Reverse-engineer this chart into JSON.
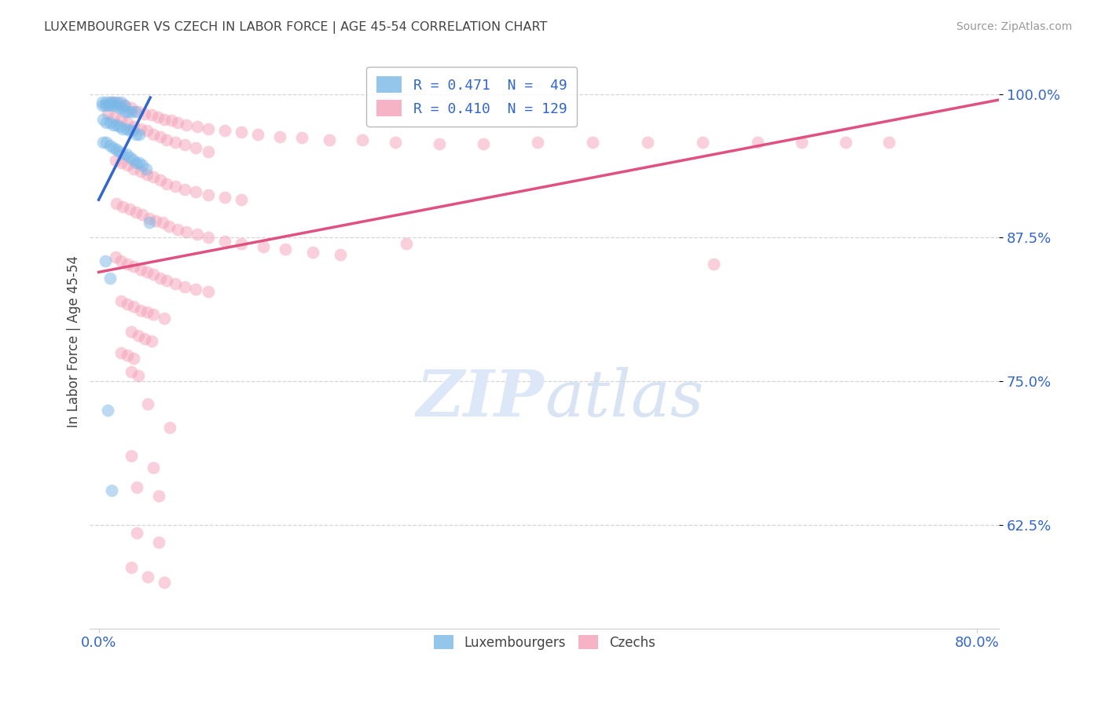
{
  "title": "LUXEMBOURGER VS CZECH IN LABOR FORCE | AGE 45-54 CORRELATION CHART",
  "source": "Source: ZipAtlas.com",
  "ylabel": "In Labor Force | Age 45-54",
  "ytick_labels": [
    "100.0%",
    "87.5%",
    "75.0%",
    "62.5%"
  ],
  "ytick_values": [
    1.0,
    0.875,
    0.75,
    0.625
  ],
  "ymin": 0.535,
  "ymax": 1.035,
  "xmin": -0.008,
  "xmax": 0.82,
  "lux_color": "#7ab8e8",
  "czech_color": "#f4a0b8",
  "lux_line_color": "#3366cc",
  "czech_line_color": "#e05080",
  "marker_size": 130,
  "marker_alpha": 0.5,
  "lux_points": [
    [
      0.003,
      0.993
    ],
    [
      0.007,
      0.993
    ],
    [
      0.01,
      0.993
    ],
    [
      0.013,
      0.993
    ],
    [
      0.016,
      0.993
    ],
    [
      0.02,
      0.993
    ],
    [
      0.023,
      0.99
    ],
    [
      0.003,
      0.99
    ],
    [
      0.006,
      0.99
    ],
    [
      0.009,
      0.99
    ],
    [
      0.012,
      0.99
    ],
    [
      0.015,
      0.99
    ],
    [
      0.018,
      0.988
    ],
    [
      0.021,
      0.988
    ],
    [
      0.024,
      0.985
    ],
    [
      0.027,
      0.985
    ],
    [
      0.03,
      0.985
    ],
    [
      0.033,
      0.985
    ],
    [
      0.004,
      0.978
    ],
    [
      0.007,
      0.975
    ],
    [
      0.01,
      0.975
    ],
    [
      0.013,
      0.973
    ],
    [
      0.016,
      0.973
    ],
    [
      0.019,
      0.972
    ],
    [
      0.022,
      0.97
    ],
    [
      0.025,
      0.97
    ],
    [
      0.028,
      0.968
    ],
    [
      0.031,
      0.968
    ],
    [
      0.034,
      0.965
    ],
    [
      0.037,
      0.965
    ],
    [
      0.004,
      0.958
    ],
    [
      0.007,
      0.958
    ],
    [
      0.01,
      0.955
    ],
    [
      0.013,
      0.953
    ],
    [
      0.016,
      0.952
    ],
    [
      0.019,
      0.95
    ],
    [
      0.022,
      0.948
    ],
    [
      0.025,
      0.948
    ],
    [
      0.028,
      0.945
    ],
    [
      0.031,
      0.943
    ],
    [
      0.034,
      0.94
    ],
    [
      0.037,
      0.94
    ],
    [
      0.04,
      0.938
    ],
    [
      0.043,
      0.935
    ],
    [
      0.046,
      0.888
    ],
    [
      0.006,
      0.855
    ],
    [
      0.01,
      0.84
    ],
    [
      0.008,
      0.725
    ],
    [
      0.012,
      0.655
    ]
  ],
  "czech_points": [
    [
      0.012,
      0.993
    ],
    [
      0.018,
      0.992
    ],
    [
      0.024,
      0.99
    ],
    [
      0.03,
      0.988
    ],
    [
      0.036,
      0.985
    ],
    [
      0.042,
      0.983
    ],
    [
      0.048,
      0.982
    ],
    [
      0.054,
      0.98
    ],
    [
      0.06,
      0.978
    ],
    [
      0.066,
      0.977
    ],
    [
      0.072,
      0.975
    ],
    [
      0.08,
      0.973
    ],
    [
      0.09,
      0.972
    ],
    [
      0.1,
      0.97
    ],
    [
      0.115,
      0.968
    ],
    [
      0.13,
      0.967
    ],
    [
      0.145,
      0.965
    ],
    [
      0.165,
      0.963
    ],
    [
      0.185,
      0.962
    ],
    [
      0.21,
      0.96
    ],
    [
      0.24,
      0.96
    ],
    [
      0.27,
      0.958
    ],
    [
      0.31,
      0.957
    ],
    [
      0.35,
      0.957
    ],
    [
      0.4,
      0.958
    ],
    [
      0.45,
      0.958
    ],
    [
      0.5,
      0.958
    ],
    [
      0.55,
      0.958
    ],
    [
      0.6,
      0.958
    ],
    [
      0.64,
      0.958
    ],
    [
      0.68,
      0.958
    ],
    [
      0.72,
      0.958
    ],
    [
      0.008,
      0.983
    ],
    [
      0.014,
      0.98
    ],
    [
      0.02,
      0.978
    ],
    [
      0.026,
      0.975
    ],
    [
      0.032,
      0.972
    ],
    [
      0.038,
      0.97
    ],
    [
      0.044,
      0.968
    ],
    [
      0.05,
      0.965
    ],
    [
      0.056,
      0.963
    ],
    [
      0.062,
      0.96
    ],
    [
      0.07,
      0.958
    ],
    [
      0.078,
      0.956
    ],
    [
      0.088,
      0.953
    ],
    [
      0.1,
      0.95
    ],
    [
      0.015,
      0.942
    ],
    [
      0.02,
      0.94
    ],
    [
      0.026,
      0.938
    ],
    [
      0.032,
      0.935
    ],
    [
      0.038,
      0.933
    ],
    [
      0.044,
      0.93
    ],
    [
      0.05,
      0.928
    ],
    [
      0.056,
      0.925
    ],
    [
      0.062,
      0.922
    ],
    [
      0.07,
      0.92
    ],
    [
      0.078,
      0.917
    ],
    [
      0.088,
      0.915
    ],
    [
      0.1,
      0.912
    ],
    [
      0.115,
      0.91
    ],
    [
      0.13,
      0.908
    ],
    [
      0.016,
      0.905
    ],
    [
      0.022,
      0.902
    ],
    [
      0.028,
      0.9
    ],
    [
      0.034,
      0.897
    ],
    [
      0.04,
      0.895
    ],
    [
      0.046,
      0.892
    ],
    [
      0.052,
      0.89
    ],
    [
      0.058,
      0.888
    ],
    [
      0.064,
      0.885
    ],
    [
      0.072,
      0.882
    ],
    [
      0.08,
      0.88
    ],
    [
      0.09,
      0.878
    ],
    [
      0.1,
      0.875
    ],
    [
      0.115,
      0.872
    ],
    [
      0.13,
      0.87
    ],
    [
      0.15,
      0.867
    ],
    [
      0.17,
      0.865
    ],
    [
      0.195,
      0.862
    ],
    [
      0.22,
      0.86
    ],
    [
      0.015,
      0.858
    ],
    [
      0.02,
      0.855
    ],
    [
      0.026,
      0.852
    ],
    [
      0.032,
      0.85
    ],
    [
      0.038,
      0.847
    ],
    [
      0.044,
      0.845
    ],
    [
      0.05,
      0.843
    ],
    [
      0.056,
      0.84
    ],
    [
      0.062,
      0.838
    ],
    [
      0.07,
      0.835
    ],
    [
      0.078,
      0.832
    ],
    [
      0.088,
      0.83
    ],
    [
      0.1,
      0.828
    ],
    [
      0.02,
      0.82
    ],
    [
      0.026,
      0.817
    ],
    [
      0.032,
      0.815
    ],
    [
      0.038,
      0.812
    ],
    [
      0.044,
      0.81
    ],
    [
      0.05,
      0.808
    ],
    [
      0.06,
      0.805
    ],
    [
      0.03,
      0.793
    ],
    [
      0.036,
      0.79
    ],
    [
      0.042,
      0.787
    ],
    [
      0.048,
      0.785
    ],
    [
      0.02,
      0.775
    ],
    [
      0.026,
      0.773
    ],
    [
      0.032,
      0.77
    ],
    [
      0.03,
      0.758
    ],
    [
      0.036,
      0.755
    ],
    [
      0.28,
      0.87
    ],
    [
      0.56,
      0.852
    ],
    [
      0.045,
      0.73
    ],
    [
      0.065,
      0.71
    ],
    [
      0.03,
      0.685
    ],
    [
      0.05,
      0.675
    ],
    [
      0.035,
      0.658
    ],
    [
      0.055,
      0.65
    ],
    [
      0.035,
      0.618
    ],
    [
      0.055,
      0.61
    ],
    [
      0.03,
      0.588
    ],
    [
      0.045,
      0.58
    ],
    [
      0.06,
      0.575
    ]
  ],
  "lux_line_x": [
    0.0,
    0.047
  ],
  "lux_line_y": [
    0.908,
    0.997
  ],
  "czech_line_x": [
    0.0,
    0.82
  ],
  "czech_line_y": [
    0.845,
    0.995
  ],
  "grid_color": "#cccccc",
  "bg_color": "#ffffff",
  "title_color": "#444444",
  "axis_label_color": "#444444",
  "tick_color": "#3366cc",
  "watermark_color": "#dce8f8",
  "watermark_fontsize": 60
}
